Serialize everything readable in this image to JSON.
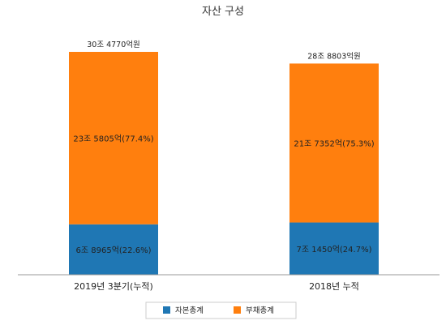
{
  "chart_data": {
    "type": "bar",
    "stacked": true,
    "title": "자산 구성",
    "categories": [
      "2019년 3분기(누적)",
      "2018년 누적"
    ],
    "series": [
      {
        "name": "자본총계",
        "color": "#1f77b4",
        "values": [
          68965,
          71450
        ],
        "labels": [
          "6조 8965억(22.6%)",
          "7조 1450억(24.7%)"
        ]
      },
      {
        "name": "부채총계",
        "color": "#ff7f0e",
        "values": [
          235805,
          217352
        ],
        "labels": [
          "23조 5805억(77.4%)",
          "21조 7352억(75.3%)"
        ]
      }
    ],
    "totals": [
      "30조 4770억원",
      "28조 8803억원"
    ],
    "units": "억원",
    "ylim": [
      0,
      304770
    ],
    "legend": "bottom-center",
    "grid": false
  }
}
